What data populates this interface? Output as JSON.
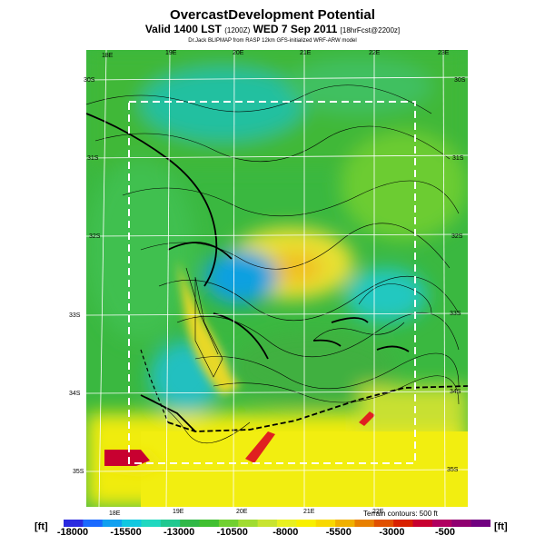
{
  "header": {
    "title": "OvercastDevelopment Potential",
    "subtitle": "Valid 1400 LST",
    "subtitle_code": "(1200Z)",
    "subtitle_date": "WED 7 Sep 2011",
    "subtitle_fcst": "[18hrFcst@2200z]",
    "source": "Dr.Jack BLIPMAP from RASP 12km GFS-initialized WRF-ARW model"
  },
  "map": {
    "lon_labels_top": [
      "18E",
      "19E",
      "20E",
      "21E",
      "22E",
      "23E"
    ],
    "lon_labels_bottom": [
      "18E",
      "19E",
      "20E",
      "21E",
      "22E"
    ],
    "lat_labels_left": [
      "30S",
      "31S",
      "32S",
      "33S",
      "34S",
      "35S"
    ],
    "lat_labels_right": [
      "30S",
      "31S",
      "32S",
      "33S",
      "34S",
      "35S"
    ],
    "terrain_note": "Terrain contours: 500 ft"
  },
  "colorbar": {
    "unit_left": "[ft]",
    "unit_right": "[ft]",
    "ticks": [
      "-18000",
      "-15500",
      "-13000",
      "-10500",
      "-8000",
      "-5500",
      "-3000",
      "-500"
    ],
    "colors": [
      "#2a2adf",
      "#1a6aff",
      "#10a0f0",
      "#10c8e0",
      "#20d8c0",
      "#20c890",
      "#30b848",
      "#40c030",
      "#70d030",
      "#a0dc30",
      "#c8e430",
      "#e8f020",
      "#f8f000",
      "#f8d800",
      "#f0b000",
      "#e88000",
      "#e05000",
      "#d82000",
      "#c80030",
      "#b00060",
      "#900070",
      "#700080"
    ]
  }
}
